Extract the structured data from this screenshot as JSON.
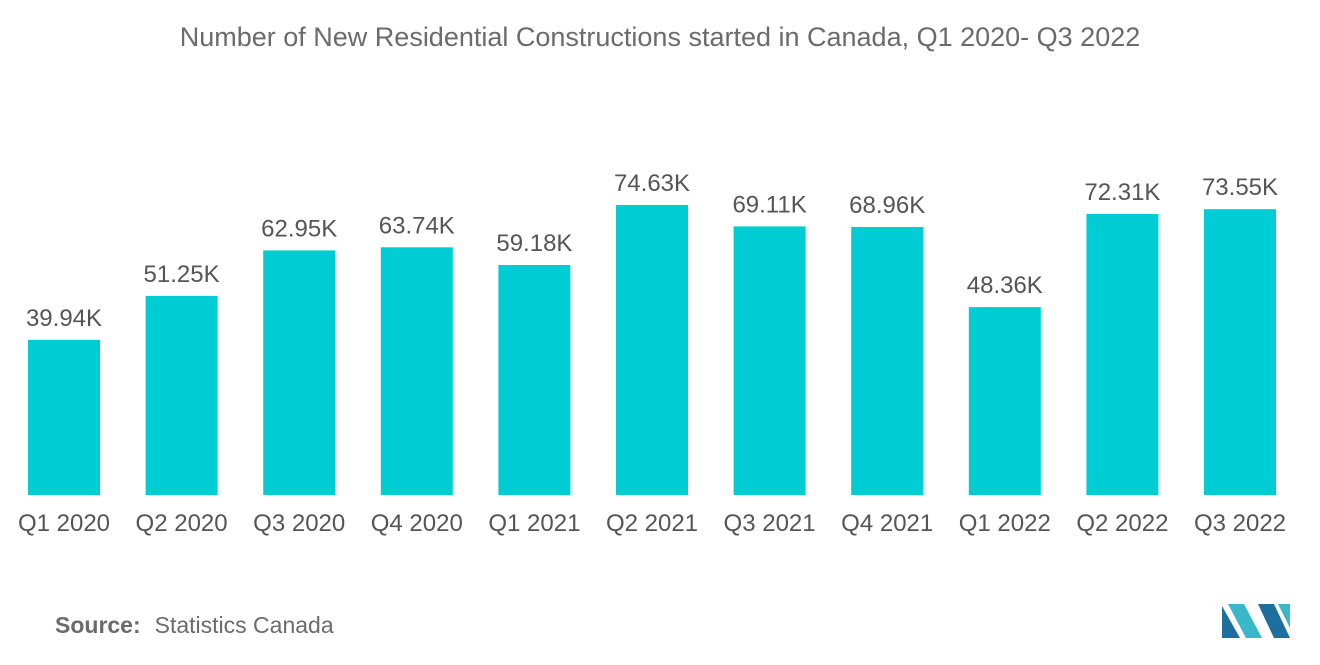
{
  "chart_data": {
    "type": "bar",
    "title": "Number of New Residential Constructions started in Canada, Q1 2020- Q3 2022",
    "categories": [
      "Q1 2020",
      "Q2 2020",
      "Q3 2020",
      "Q4 2020",
      "Q1 2021",
      "Q2 2021",
      "Q3 2021",
      "Q4 2021",
      "Q1 2022",
      "Q2 2022",
      "Q3 2022"
    ],
    "values": [
      39.94,
      51.25,
      62.95,
      63.74,
      59.18,
      74.63,
      69.11,
      68.96,
      48.36,
      72.31,
      73.55
    ],
    "data_labels": [
      "39.94K",
      "51.25K",
      "62.95K",
      "63.74K",
      "59.18K",
      "74.63K",
      "69.11K",
      "68.96K",
      "48.36K",
      "72.31K",
      "73.55K"
    ],
    "xlabel": "",
    "ylabel": "",
    "ylim": [
      0,
      75
    ],
    "grid": false,
    "bar_color": "#00cdd3"
  },
  "source": {
    "label": "Source:",
    "text": "Statistics Canada"
  },
  "logo": {
    "icon": "mordor-intelligence-logo-icon",
    "colors": [
      "#1f6f9e",
      "#3ab7c9"
    ]
  }
}
